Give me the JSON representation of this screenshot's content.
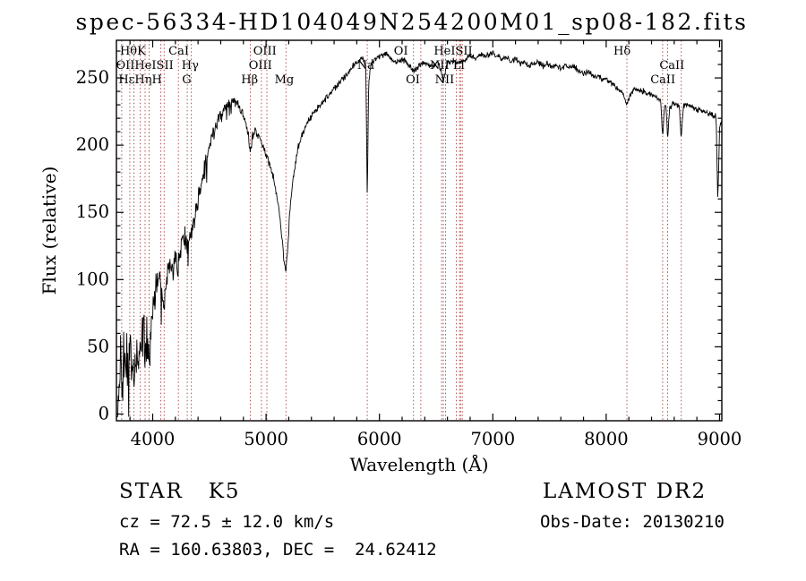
{
  "title": "spec-56334-HD104049N254200M01_sp08-182.fits",
  "annotations": {
    "object_class": "STAR   K5",
    "survey": "LAMOST DR2",
    "cz": "cz = 72.5 ± 12.0 km/s",
    "obs_date": "Obs-Date: 20130210",
    "coordinates": "RA = 160.63803, DEC =  24.62412"
  },
  "chart_data": {
    "type": "line",
    "title": "spec-56334-HD104049N254200M01_sp08-182.fits",
    "xlabel": "Wavelength (Å)",
    "ylabel": "Flux (relative)",
    "xlim": [
      3680,
      9020
    ],
    "ylim": [
      -5,
      278
    ],
    "xtick_values": [
      4000,
      5000,
      6000,
      7000,
      8000,
      9000
    ],
    "xtick_labels": [
      "4000",
      "5000",
      "6000",
      "7000",
      "8000",
      "9000"
    ],
    "x_minor_step": 200,
    "ytick_values": [
      0,
      50,
      100,
      150,
      200,
      250
    ],
    "ytick_labels": [
      "0",
      "50",
      "100",
      "150",
      "200",
      "250"
    ],
    "y_minor_step": 10,
    "grid": false,
    "legend_position": "none",
    "colors": {
      "spectrum": "#000000",
      "line_marker": "#b05050",
      "frame": "#000000"
    },
    "spectral_line_markers": [
      3727,
      3798,
      3835,
      3889,
      3933,
      3968,
      4072,
      4101,
      4227,
      4305,
      4340,
      4861,
      4959,
      5007,
      5175,
      5893,
      6300,
      6365,
      6548,
      6563,
      6583,
      6678,
      6707,
      6716,
      6731,
      8183,
      8498,
      8542,
      8662
    ],
    "line_labels": [
      {
        "text": "HθK",
        "wavelength": 3825,
        "row": 0
      },
      {
        "text": "CaI",
        "wavelength": 4230,
        "row": 0
      },
      {
        "text": "OIII",
        "wavelength": 4990,
        "row": 0
      },
      {
        "text": "OI",
        "wavelength": 6190,
        "row": 0
      },
      {
        "text": "HeISII",
        "wavelength": 6650,
        "row": 0
      },
      {
        "text": "Hδ",
        "wavelength": 8140,
        "row": 0
      },
      {
        "text": "OIIHeISII",
        "wavelength": 3930,
        "row": 1
      },
      {
        "text": "Hγ",
        "wavelength": 4330,
        "row": 1
      },
      {
        "text": "OIII",
        "wavelength": 4950,
        "row": 1
      },
      {
        "text": "Na",
        "wavelength": 5880,
        "row": 1
      },
      {
        "text": "NII",
        "wavelength": 6530,
        "row": 1
      },
      {
        "text": "Li",
        "wavelength": 6700,
        "row": 1
      },
      {
        "text": "CaII",
        "wavelength": 8580,
        "row": 1
      },
      {
        "text": "HεHηH",
        "wavelength": 3890,
        "row": 2
      },
      {
        "text": "G",
        "wavelength": 4300,
        "row": 2
      },
      {
        "text": "Hβ",
        "wavelength": 4855,
        "row": 2
      },
      {
        "text": "Mg",
        "wavelength": 5160,
        "row": 2
      },
      {
        "text": "OI",
        "wavelength": 6295,
        "row": 2
      },
      {
        "text": "NII",
        "wavelength": 6575,
        "row": 2
      },
      {
        "text": "CaII",
        "wavelength": 8500,
        "row": 2
      }
    ],
    "spectrum_anchors": {
      "wavelength": [
        3680,
        3700,
        3715,
        3730,
        3745,
        3760,
        3775,
        3790,
        3805,
        3820,
        3835,
        3850,
        3865,
        3880,
        3895,
        3910,
        3925,
        3933,
        3945,
        3960,
        3968,
        3980,
        4000,
        4020,
        4040,
        4060,
        4080,
        4101,
        4120,
        4140,
        4160,
        4180,
        4200,
        4227,
        4250,
        4280,
        4305,
        4320,
        4340,
        4360,
        4380,
        4400,
        4430,
        4460,
        4490,
        4520,
        4550,
        4580,
        4610,
        4640,
        4670,
        4700,
        4730,
        4760,
        4790,
        4820,
        4845,
        4861,
        4880,
        4900,
        4920,
        4940,
        4960,
        4980,
        5000,
        5020,
        5040,
        5060,
        5080,
        5100,
        5120,
        5140,
        5160,
        5175,
        5190,
        5205,
        5220,
        5240,
        5260,
        5280,
        5300,
        5330,
        5360,
        5390,
        5420,
        5450,
        5480,
        5510,
        5540,
        5570,
        5600,
        5630,
        5660,
        5690,
        5720,
        5750,
        5780,
        5810,
        5840,
        5865,
        5880,
        5893,
        5905,
        5920,
        5940,
        5960,
        5980,
        6000,
        6030,
        6060,
        6090,
        6120,
        6150,
        6180,
        6210,
        6240,
        6270,
        6300,
        6330,
        6360,
        6390,
        6420,
        6450,
        6480,
        6510,
        6540,
        6563,
        6580,
        6600,
        6630,
        6660,
        6690,
        6720,
        6750,
        6780,
        6810,
        6840,
        6870,
        6900,
        6930,
        6960,
        7000,
        7040,
        7080,
        7120,
        7160,
        7200,
        7240,
        7280,
        7320,
        7360,
        7400,
        7440,
        7480,
        7520,
        7560,
        7600,
        7640,
        7680,
        7720,
        7760,
        7800,
        7840,
        7880,
        7920,
        7960,
        8000,
        8040,
        8080,
        8120,
        8150,
        8183,
        8210,
        8240,
        8270,
        8300,
        8330,
        8360,
        8390,
        8420,
        8450,
        8480,
        8498,
        8515,
        8530,
        8542,
        8560,
        8590,
        8620,
        8645,
        8662,
        8680,
        8710,
        8740,
        8770,
        8800,
        8830,
        8860,
        8890,
        8920,
        8950,
        8970,
        8985,
        9000,
        9020
      ],
      "flux": [
        0,
        8,
        35,
        18,
        42,
        30,
        45,
        38,
        44,
        36,
        30,
        48,
        42,
        38,
        55,
        60,
        50,
        38,
        55,
        48,
        42,
        60,
        78,
        92,
        100,
        96,
        92,
        82,
        98,
        108,
        112,
        108,
        118,
        110,
        126,
        132,
        124,
        130,
        132,
        142,
        152,
        160,
        170,
        184,
        196,
        206,
        214,
        220,
        224,
        228,
        231,
        233,
        232,
        229,
        224,
        217,
        207,
        193,
        207,
        212,
        209,
        206,
        201,
        197,
        193,
        188,
        184,
        178,
        170,
        160,
        148,
        132,
        114,
        106,
        122,
        144,
        161,
        176,
        187,
        196,
        203,
        210,
        216,
        220,
        224,
        227,
        230,
        233,
        236,
        239,
        242,
        245,
        248,
        251,
        254,
        257,
        260,
        262,
        264,
        263,
        258,
        158,
        245,
        258,
        262,
        264,
        265,
        266,
        267,
        268,
        266,
        264,
        261,
        263,
        264,
        261,
        258,
        255,
        258,
        260,
        262,
        261,
        259,
        260,
        261,
        257,
        247,
        255,
        261,
        263,
        262,
        260,
        261,
        263,
        265,
        266,
        265,
        266,
        267,
        266,
        267,
        269,
        266,
        264,
        265,
        262,
        264,
        261,
        262,
        259,
        261,
        262,
        259,
        260,
        258,
        259,
        257,
        259,
        257,
        258,
        255,
        254,
        255,
        252,
        251,
        250,
        249,
        247,
        244,
        241,
        239,
        230,
        238,
        241,
        241,
        240,
        240,
        239,
        238,
        237,
        235,
        234,
        206,
        230,
        229,
        203,
        228,
        231,
        231,
        229,
        205,
        229,
        230,
        229,
        228,
        227,
        226,
        225,
        224,
        223,
        222,
        221,
        158,
        212,
        220
      ]
    },
    "noise": {
      "base": 2.2,
      "blue_extra": 26,
      "scale": 430,
      "seed": 20130210
    }
  }
}
